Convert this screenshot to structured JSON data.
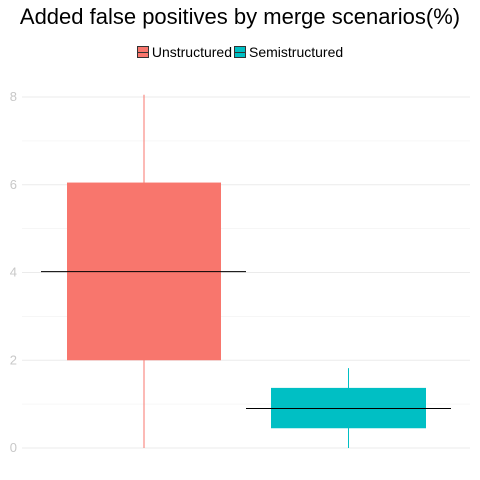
{
  "chart_data": {
    "type": "boxplot",
    "title": "Added false positives by merge scenarios(%)",
    "xlabel": "",
    "ylabel": "",
    "ylim": [
      0,
      8.2
    ],
    "yticks": [
      0,
      2,
      4,
      6,
      8
    ],
    "grid": true,
    "legend_position": "top",
    "series": [
      {
        "name": "Unstructured",
        "color": "#F8766D",
        "whisker_low": 0,
        "q1": 2.0,
        "median": 4.02,
        "q3": 6.05,
        "whisker_high": 8.05
      },
      {
        "name": "Semistructured",
        "color": "#00BFC4",
        "whisker_low": 0,
        "q1": 0.45,
        "median": 0.9,
        "q3": 1.37,
        "whisker_high": 1.82
      }
    ]
  }
}
